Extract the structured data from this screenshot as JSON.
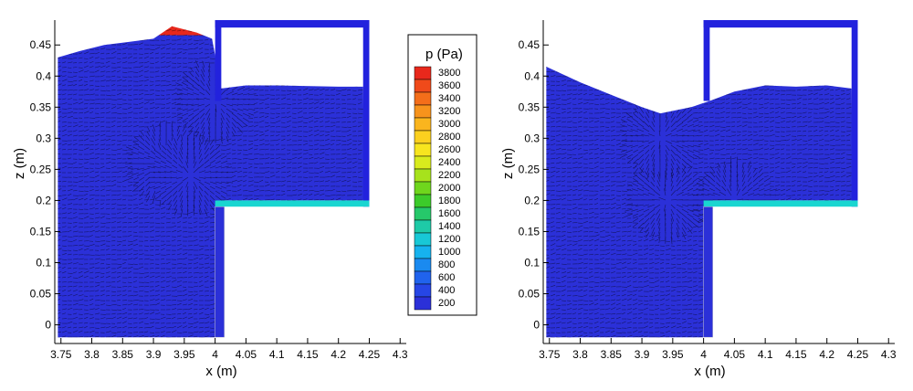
{
  "chart_data": [
    {
      "type": "heatmap",
      "panel": "left",
      "xlabel": "x (m)",
      "ylabel": "z (m)",
      "xlim": [
        3.74,
        4.31
      ],
      "ylim": [
        -0.03,
        0.49
      ],
      "xticks": [
        3.75,
        3.8,
        3.85,
        3.9,
        3.95,
        4,
        4.05,
        4.1,
        4.15,
        4.2,
        4.25,
        4.3
      ],
      "xtick_labels": [
        "3.75",
        "3.8",
        "3.85",
        "3.9",
        "3.95",
        "4",
        "4.05",
        "4.1",
        "4.15",
        "4.2",
        "4.25",
        "4.3"
      ],
      "yticks": [
        0,
        0.05,
        0.1,
        0.15,
        0.2,
        0.25,
        0.3,
        0.35,
        0.4,
        0.45
      ],
      "ytick_labels": [
        "0",
        "0.05",
        "0.1",
        "0.15",
        "0.2",
        "0.25",
        "0.3",
        "0.35",
        "0.4",
        "0.45"
      ],
      "field": "p (Pa)",
      "chamber": {
        "x0": 4.0,
        "x1": 4.25,
        "z0": 0.19,
        "z1": 0.49
      },
      "lower_wall": {
        "x0": 4.0,
        "x1": 4.015,
        "z0": -0.02,
        "z1": 0.19
      },
      "free_surface": [
        [
          3.745,
          0.43
        ],
        [
          3.78,
          0.44
        ],
        [
          3.82,
          0.45
        ],
        [
          3.86,
          0.455
        ],
        [
          3.9,
          0.46
        ],
        [
          3.93,
          0.48
        ],
        [
          3.97,
          0.47
        ],
        [
          3.995,
          0.46
        ],
        [
          4.01,
          0.38
        ],
        [
          4.05,
          0.385
        ],
        [
          4.1,
          0.385
        ],
        [
          4.2,
          0.383
        ],
        [
          4.24,
          0.383
        ]
      ],
      "vortices": [
        [
          3.92,
          0.26
        ],
        [
          3.96,
          0.24
        ],
        [
          4.0,
          0.36
        ]
      ]
    },
    {
      "type": "heatmap",
      "panel": "right",
      "xlabel": "x (m)",
      "ylabel": "z (m)",
      "xlim": [
        3.74,
        4.31
      ],
      "ylim": [
        -0.03,
        0.49
      ],
      "xticks": [
        3.75,
        3.8,
        3.85,
        3.9,
        3.95,
        4,
        4.05,
        4.1,
        4.15,
        4.2,
        4.25,
        4.3
      ],
      "xtick_labels": [
        "3.75",
        "3.8",
        "3.85",
        "3.9",
        "3.95",
        "4",
        "4.05",
        "4.1",
        "4.15",
        "4.2",
        "4.25",
        "4.3"
      ],
      "yticks": [
        0,
        0.05,
        0.1,
        0.15,
        0.2,
        0.25,
        0.3,
        0.35,
        0.4,
        0.45
      ],
      "ytick_labels": [
        "0",
        "0.05",
        "0.1",
        "0.15",
        "0.2",
        "0.25",
        "0.3",
        "0.35",
        "0.4",
        "0.45"
      ],
      "field": "p (Pa)",
      "chamber": {
        "x0": 4.0,
        "x1": 4.25,
        "z0": 0.19,
        "z1": 0.49
      },
      "lower_wall": {
        "x0": 4.0,
        "x1": 4.015,
        "z0": -0.02,
        "z1": 0.19
      },
      "free_surface": [
        [
          3.745,
          0.415
        ],
        [
          3.8,
          0.39
        ],
        [
          3.85,
          0.37
        ],
        [
          3.9,
          0.35
        ],
        [
          3.93,
          0.34
        ],
        [
          3.98,
          0.35
        ],
        [
          4.01,
          0.36
        ],
        [
          4.05,
          0.375
        ],
        [
          4.1,
          0.385
        ],
        [
          4.15,
          0.383
        ],
        [
          4.2,
          0.385
        ],
        [
          4.24,
          0.38
        ]
      ],
      "vortices": [
        [
          3.94,
          0.2
        ],
        [
          3.93,
          0.3
        ],
        [
          4.05,
          0.2
        ]
      ]
    }
  ],
  "legend": {
    "title": "p (Pa)",
    "levels": [
      3800,
      3600,
      3400,
      3200,
      3000,
      2800,
      2600,
      2400,
      2200,
      2000,
      1800,
      1600,
      1400,
      1200,
      1000,
      800,
      600,
      400,
      200
    ],
    "labels": [
      "3800",
      "3600",
      "3400",
      "3200",
      "3000",
      "2800",
      "2600",
      "2400",
      "2200",
      "2000",
      "1800",
      "1600",
      "1400",
      "1200",
      "1000",
      "800",
      "600",
      "400",
      "200"
    ],
    "colors": [
      "#e8281c",
      "#f04a1a",
      "#f46e1a",
      "#f7931c",
      "#fab51e",
      "#fbd01f",
      "#f7e51f",
      "#d8eb1d",
      "#a7e21c",
      "#6fd61d",
      "#3ccb2a",
      "#26c86a",
      "#1ecaa7",
      "#18c8d6",
      "#16b2ee",
      "#1a8af0",
      "#2063ed",
      "#2646e5",
      "#2b30d8"
    ]
  },
  "colors": {
    "wall": "#2222dd",
    "vector": "#000000",
    "background": "#ffffff"
  }
}
